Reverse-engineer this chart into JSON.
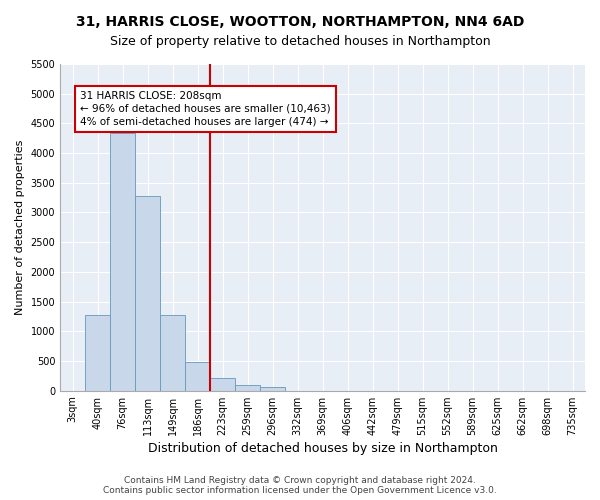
{
  "title": "31, HARRIS CLOSE, WOOTTON, NORTHAMPTON, NN4 6AD",
  "subtitle": "Size of property relative to detached houses in Northampton",
  "xlabel": "Distribution of detached houses by size in Northampton",
  "ylabel": "Number of detached properties",
  "footer_line1": "Contains HM Land Registry data © Crown copyright and database right 2024.",
  "footer_line2": "Contains public sector information licensed under the Open Government Licence v3.0.",
  "bar_labels": [
    "3sqm",
    "40sqm",
    "76sqm",
    "113sqm",
    "149sqm",
    "186sqm",
    "223sqm",
    "259sqm",
    "296sqm",
    "332sqm",
    "369sqm",
    "406sqm",
    "442sqm",
    "479sqm",
    "515sqm",
    "552sqm",
    "589sqm",
    "625sqm",
    "662sqm",
    "698sqm",
    "735sqm"
  ],
  "bar_values": [
    0,
    1270,
    4330,
    3280,
    1280,
    480,
    210,
    90,
    60,
    0,
    0,
    0,
    0,
    0,
    0,
    0,
    0,
    0,
    0,
    0,
    0
  ],
  "bar_color": "#c8d8ea",
  "bar_edge_color": "#6699bb",
  "vline_x": 5.5,
  "vline_color": "#cc0000",
  "annotation_text": "31 HARRIS CLOSE: 208sqm\n← 96% of detached houses are smaller (10,463)\n4% of semi-detached houses are larger (474) →",
  "annotation_box_color": "#cc0000",
  "ylim": [
    0,
    5500
  ],
  "yticks": [
    0,
    500,
    1000,
    1500,
    2000,
    2500,
    3000,
    3500,
    4000,
    4500,
    5000,
    5500
  ],
  "fig_bg_color": "#ffffff",
  "plot_bg_color": "#e8eef6",
  "title_fontsize": 10,
  "subtitle_fontsize": 9,
  "xlabel_fontsize": 9,
  "ylabel_fontsize": 8,
  "tick_fontsize": 7,
  "footer_fontsize": 6.5
}
